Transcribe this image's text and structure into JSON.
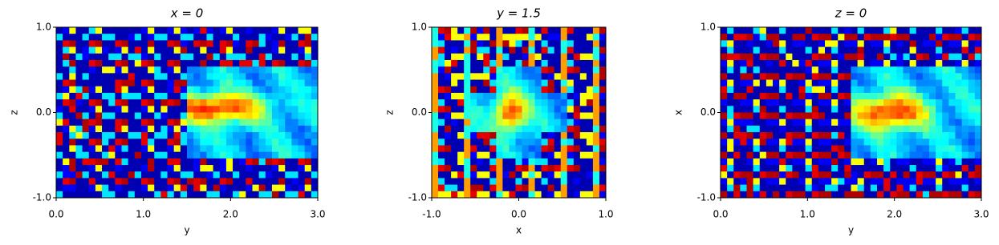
{
  "chart_data": [
    {
      "type": "heatmap",
      "title": "x = 0",
      "x_label": "y",
      "y_label": "z",
      "xlim": [
        0,
        3
      ],
      "ylim": [
        -1,
        1
      ],
      "xticks": [
        {
          "value": 0,
          "label": "0.0"
        },
        {
          "value": 1,
          "label": "1.0"
        },
        {
          "value": 2,
          "label": "2.0"
        },
        {
          "value": 3,
          "label": "3.0"
        }
      ],
      "yticks": [
        {
          "value": -1,
          "label": "-1.0"
        },
        {
          "value": 0,
          "label": "0.0"
        },
        {
          "value": 1,
          "label": "1.0"
        }
      ]
    },
    {
      "type": "heatmap",
      "title": "y = 1.5",
      "x_label": "x",
      "y_label": "z",
      "xlim": [
        -1,
        1
      ],
      "ylim": [
        -1,
        1
      ],
      "xticks": [
        {
          "value": -1,
          "label": "-1.0"
        },
        {
          "value": 0,
          "label": "0.0"
        },
        {
          "value": 1,
          "label": "1.0"
        }
      ],
      "yticks": [
        {
          "value": -1,
          "label": "-1.0"
        },
        {
          "value": 0,
          "label": "0.0"
        },
        {
          "value": 1,
          "label": "1.0"
        }
      ]
    },
    {
      "type": "heatmap",
      "title": "z = 0",
      "x_label": "y",
      "y_label": "x",
      "xlim": [
        0,
        3
      ],
      "ylim": [
        -1,
        1
      ],
      "xticks": [
        {
          "value": 0,
          "label": "0.0"
        },
        {
          "value": 1,
          "label": "1.0"
        },
        {
          "value": 2,
          "label": "2.0"
        },
        {
          "value": 3,
          "label": "3.0"
        }
      ],
      "yticks": [
        {
          "value": -1,
          "label": "-1.0"
        },
        {
          "value": 0,
          "label": "0.0"
        },
        {
          "value": 1,
          "label": "1.0"
        }
      ]
    }
  ]
}
